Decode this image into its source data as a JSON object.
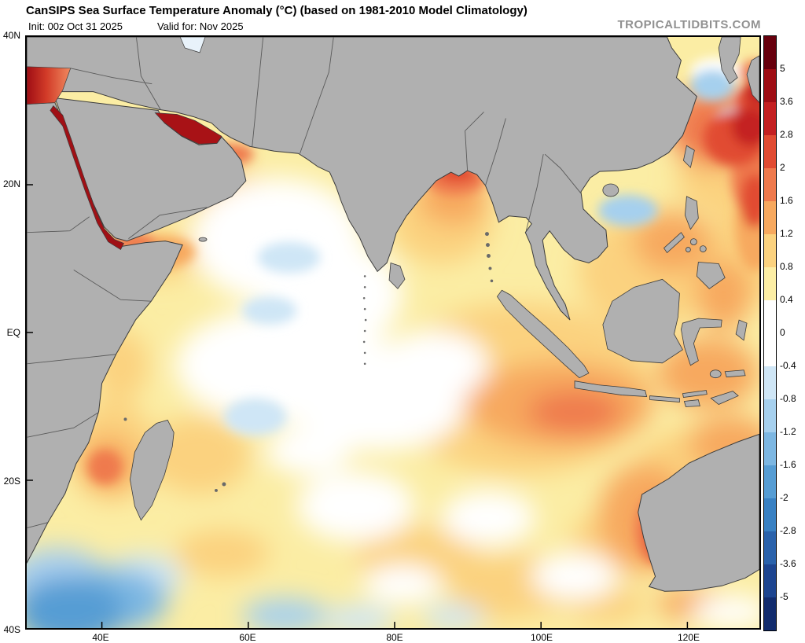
{
  "header": {
    "title": "CanSIPS Sea Surface Temperature Anomaly (°C) (based on 1981-2010 Model Climatology)",
    "init": "Init: 00z Oct 31 2025",
    "valid": "Valid for: Nov 2025",
    "watermark": "TROPICALTIDBITS.COM"
  },
  "axes": {
    "lat_labels": [
      "40N",
      "20N",
      "EQ",
      "20S",
      "40S"
    ],
    "lon_labels": [
      "40E",
      "60E",
      "80E",
      "100E",
      "120E"
    ]
  },
  "colorbar": {
    "unit": "°C",
    "ticks": [
      "5",
      "3.6",
      "2.8",
      "2",
      "1.6",
      "1.2",
      "0.8",
      "0.4",
      "0",
      "-0.4",
      "-0.8",
      "-1.2",
      "-1.6",
      "-2",
      "-2.8",
      "-3.6",
      "-5"
    ],
    "segment_colors": [
      "#67000d",
      "#9e0d14",
      "#c42021",
      "#e14b32",
      "#ef7a4d",
      "#f7a95f",
      "#fbd27f",
      "#fceea5",
      "#ffffff",
      "#ffffff",
      "#cfe6f6",
      "#a6d0ee",
      "#7db7e2",
      "#569dd4",
      "#3981c3",
      "#2a62ab",
      "#1d4590",
      "#122c6e"
    ]
  }
}
